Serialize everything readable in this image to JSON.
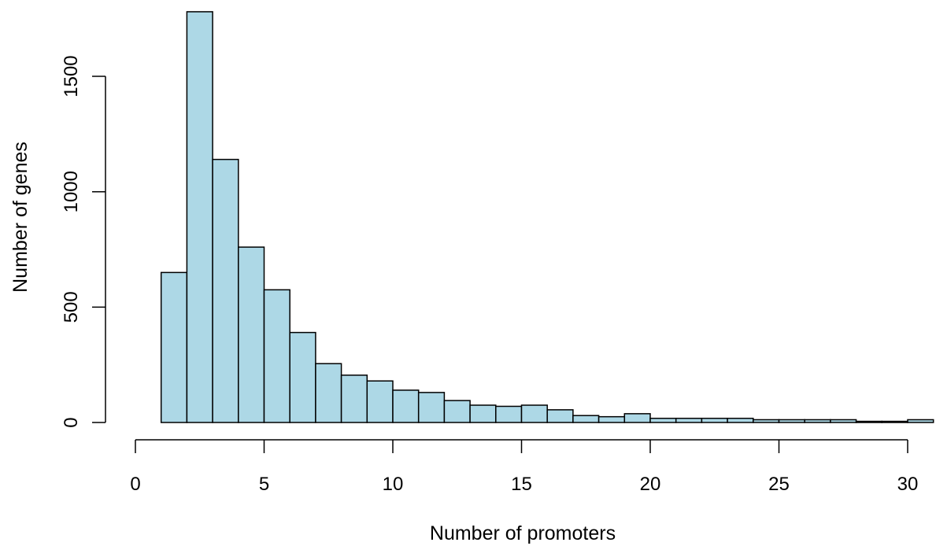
{
  "chart_data": {
    "type": "bar",
    "subtype": "histogram",
    "title": "",
    "xlabel": "Number of promoters",
    "ylabel": "Number of genes",
    "bar_color": "#add8e6",
    "stroke_color": "#000000",
    "grid": false,
    "xlim": [
      0,
      31
    ],
    "ylim": [
      0,
      1800
    ],
    "xticks": [
      0,
      5,
      10,
      15,
      20,
      25,
      30
    ],
    "yticks": [
      0,
      500,
      1000,
      1500
    ],
    "bins": [
      {
        "x0": 1,
        "x1": 2,
        "count": 650
      },
      {
        "x0": 2,
        "x1": 3,
        "count": 1780
      },
      {
        "x0": 3,
        "x1": 4,
        "count": 1140
      },
      {
        "x0": 4,
        "x1": 5,
        "count": 760
      },
      {
        "x0": 5,
        "x1": 6,
        "count": 575
      },
      {
        "x0": 6,
        "x1": 7,
        "count": 390
      },
      {
        "x0": 7,
        "x1": 8,
        "count": 255
      },
      {
        "x0": 8,
        "x1": 9,
        "count": 205
      },
      {
        "x0": 9,
        "x1": 10,
        "count": 180
      },
      {
        "x0": 10,
        "x1": 11,
        "count": 140
      },
      {
        "x0": 11,
        "x1": 12,
        "count": 130
      },
      {
        "x0": 12,
        "x1": 13,
        "count": 95
      },
      {
        "x0": 13,
        "x1": 14,
        "count": 75
      },
      {
        "x0": 14,
        "x1": 15,
        "count": 70
      },
      {
        "x0": 15,
        "x1": 16,
        "count": 75
      },
      {
        "x0": 16,
        "x1": 17,
        "count": 55
      },
      {
        "x0": 17,
        "x1": 18,
        "count": 30
      },
      {
        "x0": 18,
        "x1": 19,
        "count": 25
      },
      {
        "x0": 19,
        "x1": 20,
        "count": 38
      },
      {
        "x0": 20,
        "x1": 21,
        "count": 18
      },
      {
        "x0": 21,
        "x1": 22,
        "count": 18
      },
      {
        "x0": 22,
        "x1": 23,
        "count": 18
      },
      {
        "x0": 23,
        "x1": 24,
        "count": 18
      },
      {
        "x0": 24,
        "x1": 25,
        "count": 12
      },
      {
        "x0": 25,
        "x1": 26,
        "count": 12
      },
      {
        "x0": 26,
        "x1": 27,
        "count": 12
      },
      {
        "x0": 27,
        "x1": 28,
        "count": 12
      },
      {
        "x0": 28,
        "x1": 29,
        "count": 5
      },
      {
        "x0": 29,
        "x1": 30,
        "count": 5
      },
      {
        "x0": 30,
        "x1": 31,
        "count": 12
      }
    ]
  }
}
